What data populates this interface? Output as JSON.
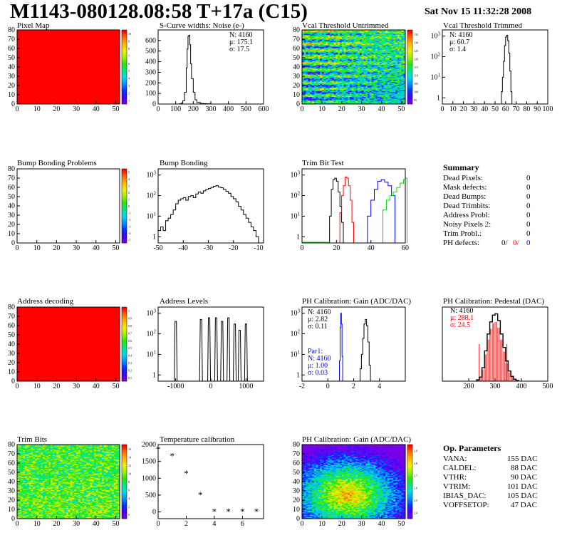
{
  "header": {
    "title": "M1143-080128.08:58 T+17a (C15)",
    "timestamp": "Sat Nov 15 11:32:28 2008"
  },
  "chart_data": [
    {
      "id": "pixel-map",
      "type": "heatmap",
      "title": "Pixel Map",
      "xlim": [
        0,
        52
      ],
      "ylim": [
        0,
        80
      ],
      "x_ticks": [
        0,
        10,
        20,
        30,
        40,
        50
      ],
      "y_ticks": [
        0,
        10,
        20,
        30,
        40,
        50,
        60,
        70,
        80
      ],
      "fill": "uniform",
      "fill_color": "#ff0000",
      "color_scale_ticks": [
        "1",
        "2",
        "3",
        "4",
        "5",
        "6",
        "7",
        "8",
        "9",
        "10"
      ]
    },
    {
      "id": "scurve-widths",
      "type": "line",
      "title": "S-Curve widths: Noise (e-)",
      "xlim": [
        0,
        600
      ],
      "ylim": [
        0,
        700
      ],
      "x_ticks": [
        0,
        100,
        200,
        300,
        400,
        500,
        600
      ],
      "y_ticks": [
        0,
        100,
        200,
        300,
        400,
        500,
        600
      ],
      "stats": [
        "N: 4160",
        "μ: 175.1",
        "σ: 17.5"
      ],
      "x": [
        100,
        120,
        130,
        140,
        150,
        160,
        165,
        170,
        175,
        180,
        185,
        190,
        200,
        210,
        220,
        240,
        260,
        280,
        300
      ],
      "values": [
        0,
        2,
        8,
        30,
        110,
        340,
        520,
        640,
        650,
        560,
        380,
        240,
        110,
        40,
        15,
        5,
        3,
        2,
        0
      ]
    },
    {
      "id": "vcal-untrimmed",
      "type": "heatmap",
      "title": "Vcal Threshold Untrimmed",
      "xlim": [
        0,
        52
      ],
      "ylim": [
        0,
        80
      ],
      "x_ticks": [
        0,
        10,
        20,
        30,
        40,
        50
      ],
      "y_ticks": [
        0,
        10,
        20,
        30,
        40,
        50,
        60,
        70,
        80
      ],
      "fill": "noise",
      "pattern": "rows",
      "color_scale_ticks": [
        "95",
        "100",
        "105",
        "110",
        "115",
        "120",
        "125",
        "130",
        "135"
      ]
    },
    {
      "id": "vcal-trimmed",
      "type": "line",
      "title": "Vcal Threshold Trimmed",
      "xlim": [
        0,
        100
      ],
      "ylim": [
        0.5,
        2000
      ],
      "yscale": "log",
      "x_ticks": [
        0,
        10,
        20,
        30,
        40,
        50,
        60,
        70,
        80,
        90,
        100
      ],
      "stats": [
        "N: 4160",
        "μ: 60.7",
        "σ: 1.4"
      ],
      "x": [
        56,
        57,
        58,
        59,
        60,
        61,
        62,
        63,
        64,
        65
      ],
      "values": [
        2,
        10,
        60,
        350,
        900,
        1100,
        600,
        150,
        20,
        2
      ]
    },
    {
      "id": "bump-bonding-problems",
      "type": "heatmap",
      "title": "Bump Bonding Problems",
      "xlim": [
        0,
        52
      ],
      "ylim": [
        0,
        80
      ],
      "x_ticks": [
        0,
        10,
        20,
        30,
        40,
        50
      ],
      "y_ticks": [
        0,
        10,
        20,
        30,
        40,
        50,
        60,
        70,
        80
      ],
      "fill": "empty",
      "color_scale_ticks": [
        "-5",
        "-4",
        "-3",
        "-2",
        "-1",
        "0",
        "1",
        "2",
        "3",
        "4",
        "5"
      ]
    },
    {
      "id": "bump-bonding",
      "type": "line",
      "title": "Bump Bonding",
      "xlim": [
        -50,
        -8
      ],
      "ylim": [
        0.5,
        2000
      ],
      "yscale": "log",
      "x_ticks": [
        -50,
        -40,
        -30,
        -20,
        -10
      ],
      "x": [
        -50,
        -49,
        -48,
        -47,
        -46,
        -45,
        -44,
        -43,
        -42,
        -41,
        -40,
        -39,
        -38,
        -37,
        -36,
        -35,
        -34,
        -33,
        -32,
        -31,
        -30,
        -29,
        -28,
        -27,
        -26,
        -25,
        -24,
        -23,
        -22,
        -21,
        -20,
        -19,
        -18,
        -17,
        -16,
        -15,
        -14,
        -13,
        -12,
        -11
      ],
      "values": [
        2,
        3,
        2,
        6,
        8,
        12,
        20,
        40,
        60,
        70,
        80,
        60,
        90,
        100,
        80,
        120,
        150,
        130,
        170,
        200,
        220,
        250,
        280,
        300,
        260,
        240,
        200,
        160,
        130,
        90,
        70,
        50,
        30,
        20,
        12,
        8,
        5,
        3,
        2,
        1
      ]
    },
    {
      "id": "trim-bit-test",
      "type": "line",
      "title": "Trim Bit Test",
      "xlim": [
        0,
        60
      ],
      "ylim": [
        0.5,
        2000
      ],
      "yscale": "log",
      "x_ticks": [
        0,
        20,
        40,
        60
      ],
      "series": [
        {
          "color": "#000000",
          "x": [
            16,
            17,
            18,
            19,
            20,
            21,
            22,
            23
          ],
          "values": [
            10,
            200,
            600,
            700,
            500,
            150,
            30,
            5
          ]
        },
        {
          "color": "#ff0000",
          "x": [
            22,
            23,
            24,
            25,
            26,
            27,
            28,
            29
          ],
          "values": [
            15,
            100,
            300,
            800,
            700,
            300,
            60,
            5
          ]
        },
        {
          "color": "#0000ff",
          "x": [
            38,
            40,
            42,
            44,
            46,
            48,
            50,
            52
          ],
          "values": [
            10,
            60,
            200,
            500,
            600,
            450,
            300,
            100
          ]
        },
        {
          "color": "#00dd00",
          "x": [
            47,
            49,
            51,
            53,
            55,
            57,
            59,
            60
          ],
          "values": [
            20,
            60,
            100,
            150,
            250,
            400,
            600,
            700
          ]
        }
      ]
    },
    {
      "id": "address-decoding",
      "type": "heatmap",
      "title": "Address decoding",
      "xlim": [
        0,
        52
      ],
      "ylim": [
        0,
        80
      ],
      "x_ticks": [
        0,
        10,
        20,
        30,
        40,
        50
      ],
      "y_ticks": [
        0,
        10,
        20,
        30,
        40,
        50,
        60,
        70,
        80
      ],
      "fill": "uniform",
      "fill_color": "#ff0000",
      "color_scale_ticks": [
        "0.1",
        "0.2",
        "0.3",
        "0.4",
        "0.5",
        "0.6",
        "0.7",
        "0.8",
        "0.9",
        "1"
      ]
    },
    {
      "id": "address-levels",
      "type": "line",
      "title": "Address Levels",
      "xlim": [
        -1500,
        1500
      ],
      "ylim": [
        0.5,
        2000
      ],
      "yscale": "log",
      "x_ticks": [
        -1000,
        0,
        1000
      ],
      "peaks": [
        {
          "x": -1000,
          "value": 400
        },
        {
          "x": -280,
          "value": 500
        },
        {
          "x": -50,
          "value": 600
        },
        {
          "x": 150,
          "value": 600
        },
        {
          "x": 320,
          "value": 400
        },
        {
          "x": 500,
          "value": 600
        },
        {
          "x": 680,
          "value": 300
        },
        {
          "x": 820,
          "value": 150
        },
        {
          "x": 1000,
          "value": 300
        }
      ]
    },
    {
      "id": "ph-gain",
      "type": "line",
      "title": "PH Calibration: Gain (ADC/DAC)",
      "xlim": [
        -2,
        6
      ],
      "ylim": [
        0.5,
        2000
      ],
      "yscale": "log",
      "x_ticks": [
        -2,
        0,
        2,
        4
      ],
      "stats": [
        "N: 4160",
        "μ: 2.82",
        "σ: 0.11"
      ],
      "stats2": [
        "Par1:",
        "N: 4160",
        "μ: 1.00",
        "σ: 0.03"
      ],
      "series": [
        {
          "color": "#000000",
          "x": [
            2.5,
            2.6,
            2.7,
            2.8,
            2.9,
            3.0,
            3.1,
            3.2
          ],
          "values": [
            2,
            10,
            60,
            300,
            500,
            250,
            40,
            3
          ]
        },
        {
          "color": "#0000ff",
          "x": [
            0.9,
            0.95,
            1.0,
            1.05,
            1.1
          ],
          "values": [
            5,
            200,
            1000,
            300,
            8
          ]
        }
      ]
    },
    {
      "id": "ph-pedestal",
      "type": "line",
      "title": "PH Calibration: Pedestal (DAC)",
      "xlim": [
        100,
        500
      ],
      "ylim": [
        0,
        1100
      ],
      "x_ticks": [
        200,
        300,
        400,
        500
      ],
      "stats": [
        "N: 4160",
        "μ: 288.1",
        "σ: 24.5"
      ],
      "x": [
        230,
        240,
        250,
        260,
        270,
        280,
        290,
        300,
        310,
        320,
        330,
        340,
        350,
        360,
        370,
        380
      ],
      "values": [
        20,
        60,
        200,
        450,
        700,
        880,
        980,
        1000,
        900,
        700,
        500,
        300,
        150,
        70,
        30,
        10
      ]
    },
    {
      "id": "trim-bits",
      "type": "heatmap",
      "title": "Trim Bits",
      "xlim": [
        0,
        52
      ],
      "ylim": [
        0,
        80
      ],
      "x_ticks": [
        0,
        10,
        20,
        30,
        40,
        50
      ],
      "y_ticks": [
        0,
        10,
        20,
        30,
        40,
        50,
        60,
        70,
        80
      ],
      "fill": "noise",
      "pattern": "trim",
      "color_scale_ticks": [
        "0",
        "2",
        "4",
        "6",
        "8",
        "10",
        "12",
        "14",
        "16"
      ]
    },
    {
      "id": "temperature-calibration",
      "type": "scatter",
      "title": "Temperature calibration",
      "xlim": [
        0,
        7.5
      ],
      "ylim": [
        -200,
        2000
      ],
      "x_ticks": [
        0,
        2,
        4,
        6
      ],
      "y_ticks": [
        0,
        500,
        1000,
        1500,
        2000
      ],
      "x": [
        0,
        1,
        2,
        3,
        4,
        5,
        6,
        7
      ],
      "values": [
        1850,
        1650,
        1130,
        500,
        0,
        0,
        0,
        0
      ]
    },
    {
      "id": "ph-gain-map",
      "type": "heatmap",
      "title": "PH Calibration: Gain (ADC/DAC)",
      "xlim": [
        0,
        52
      ],
      "ylim": [
        0,
        80
      ],
      "x_ticks": [
        0,
        10,
        20,
        30,
        40,
        50
      ],
      "y_ticks": [
        0,
        10,
        20,
        30,
        40,
        50,
        60,
        70,
        80
      ],
      "fill": "noise",
      "pattern": "blob",
      "color_scale_ticks": [
        "2.4",
        "2.5",
        "2.6",
        "2.7",
        "2.8",
        "2.9"
      ]
    }
  ],
  "summary": {
    "title": "Summary",
    "rows": [
      {
        "label": "Dead Pixels:",
        "value": "0"
      },
      {
        "label": "Mask defects:",
        "value": "0"
      },
      {
        "label": "Dead Bumps:",
        "value": "0"
      },
      {
        "label": "Dead Trimbits:",
        "value": "0"
      },
      {
        "label": "Address Probl:",
        "value": "0"
      },
      {
        "label": "Noisy Pixels 2:",
        "value": "0"
      },
      {
        "label": "Trim Probl.:",
        "value": "0"
      }
    ],
    "ph_defects": {
      "label": "PH defects:",
      "v1": "0/",
      "v2": "0/",
      "v3": "0"
    }
  },
  "op_parameters": {
    "title": "Op. Parameters",
    "rows": [
      {
        "label": "VANA:",
        "value": "155 DAC"
      },
      {
        "label": "CALDEL:",
        "value": "88 DAC"
      },
      {
        "label": "VTHR:",
        "value": "90 DAC"
      },
      {
        "label": "VTRIM:",
        "value": "101 DAC"
      },
      {
        "label": "IBIAS_DAC:",
        "value": "105 DAC"
      },
      {
        "label": "VOFFSETOP:",
        "value": "47 DAC"
      }
    ]
  }
}
